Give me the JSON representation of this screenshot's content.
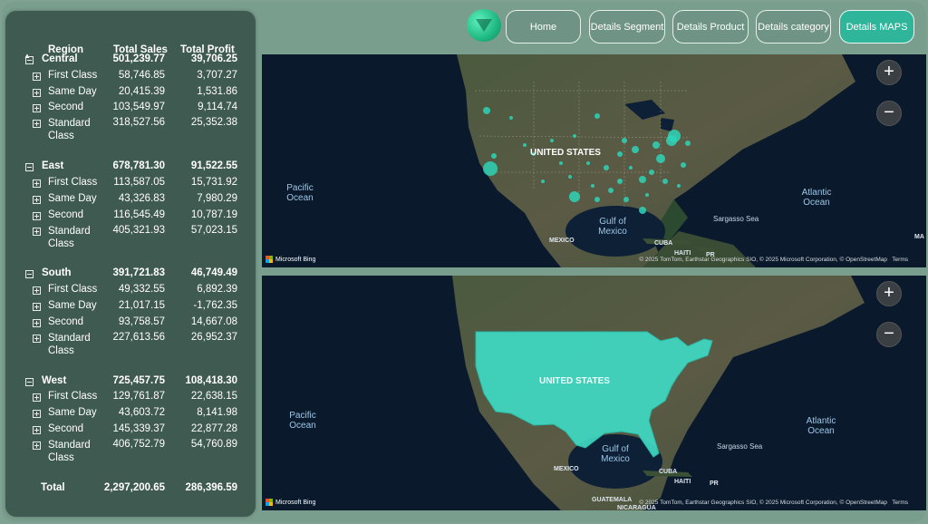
{
  "matrix": {
    "headers": {
      "region": "Region",
      "sales": "Total Sales",
      "profit": "Total Profit"
    },
    "regions": [
      {
        "name": "Central",
        "sales": "501,239.77",
        "profit": "39,706.25",
        "rows": [
          {
            "name": "First Class",
            "sales": "58,746.85",
            "profit": "3,707.27"
          },
          {
            "name": "Same Day",
            "sales": "20,415.39",
            "profit": "1,531.86"
          },
          {
            "name": "Second",
            "sales": "103,549.97",
            "profit": "9,114.74"
          },
          {
            "name": "Standard Class",
            "sales": "318,527.56",
            "profit": "25,352.38"
          }
        ]
      },
      {
        "name": "East",
        "sales": "678,781.30",
        "profit": "91,522.55",
        "rows": [
          {
            "name": "First Class",
            "sales": "113,587.05",
            "profit": "15,731.92"
          },
          {
            "name": "Same Day",
            "sales": "43,326.83",
            "profit": "7,980.29"
          },
          {
            "name": "Second",
            "sales": "116,545.49",
            "profit": "10,787.19"
          },
          {
            "name": "Standard Class",
            "sales": "405,321.93",
            "profit": "57,023.15"
          }
        ]
      },
      {
        "name": "South",
        "sales": "391,721.83",
        "profit": "46,749.49",
        "rows": [
          {
            "name": "First Class",
            "sales": "49,332.55",
            "profit": "6,892.39"
          },
          {
            "name": "Same Day",
            "sales": "21,017.15",
            "profit": "-1,762.35"
          },
          {
            "name": "Second",
            "sales": "93,758.57",
            "profit": "14,667.08"
          },
          {
            "name": "Standard Class",
            "sales": "227,613.56",
            "profit": "26,952.37"
          }
        ]
      },
      {
        "name": "West",
        "sales": "725,457.75",
        "profit": "108,418.30",
        "rows": [
          {
            "name": "First Class",
            "sales": "129,761.87",
            "profit": "22,638.15"
          },
          {
            "name": "Same Day",
            "sales": "43,603.72",
            "profit": "8,141.98"
          },
          {
            "name": "Second",
            "sales": "145,339.37",
            "profit": "22,877.28"
          },
          {
            "name": "Standard Class",
            "sales": "406,752.79",
            "profit": "54,760.89"
          }
        ]
      }
    ],
    "total": {
      "label": "Total",
      "sales": "2,297,200.65",
      "profit": "286,396.59"
    }
  },
  "nav": {
    "home": "Home",
    "segment": "Details Segment",
    "product": "Details Product",
    "category": "Details category",
    "maps": "Details MAPS",
    "active": "Details MAPS"
  },
  "colors": {
    "accent": "#2fb59a",
    "panel": "#3f5a50",
    "background": "#7a9e8e",
    "bubble": "#2ed3b7",
    "fill": "#3fd9c3"
  },
  "maps": {
    "labels": {
      "country": "UNITED STATES",
      "pacific": "Pacific Ocean",
      "atlantic": "Atlantic Ocean",
      "gulf": "Gulf of Mexico",
      "sargasso": "Sargasso Sea",
      "mexico": "MEXICO",
      "cuba": "CUBA",
      "haiti": "HAITI",
      "pr": "PR",
      "ma": "MA",
      "guatemala": "GUATEMALA",
      "nicaragua": "NICARAGUA"
    },
    "zoom_in": "+",
    "zoom_out": "−",
    "provider": "Microsoft Bing",
    "attribution": "© 2025 TomTom, Earthstar Geographics SIO, © 2025 Microsoft Corporation, © OpenStreetMap",
    "terms": "Terms"
  }
}
